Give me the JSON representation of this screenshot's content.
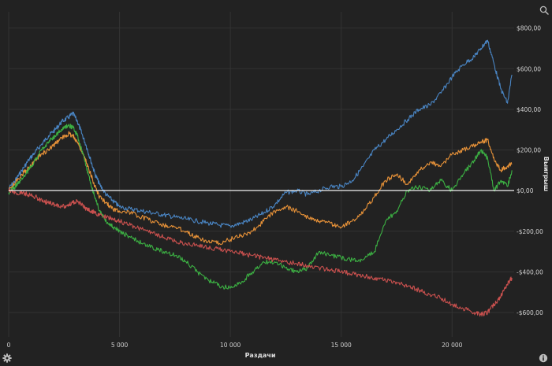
{
  "chart_data": {
    "type": "line",
    "title": "",
    "xlabel": "Раздачи",
    "ylabel": "Выигрыш",
    "xlim": [
      0,
      22800
    ],
    "ylim": [
      -720,
      880
    ],
    "x_ticks": [
      0,
      5000,
      10000,
      15000,
      20000
    ],
    "x_tick_labels": [
      "0",
      "5 000",
      "10 000",
      "15 000",
      "20 000"
    ],
    "y_ticks": [
      800,
      600,
      400,
      200,
      0,
      -200,
      -400,
      -600
    ],
    "y_tick_labels": [
      "$800,00",
      "$600,00",
      "$400,00",
      "$200,00",
      "$0,00",
      "-$200,00",
      "-$400,00",
      "-$600,00"
    ],
    "y_axis_position": "right",
    "grid": true,
    "zero_line": true,
    "legend": "none",
    "series": [
      {
        "color": "#4a86c5",
        "x": [
          0,
          300,
          600,
          900,
          1200,
          1500,
          1800,
          2100,
          2400,
          2700,
          2900,
          3100,
          3300,
          3500,
          3700,
          3900,
          4100,
          4400,
          4700,
          5000,
          5500,
          6000,
          6500,
          7000,
          7500,
          8000,
          8500,
          9000,
          9500,
          10000,
          10500,
          11000,
          11500,
          12000,
          12500,
          13000,
          13500,
          14000,
          14500,
          15000,
          15500,
          16000,
          16500,
          17000,
          17500,
          18000,
          18500,
          19000,
          19500,
          20000,
          20500,
          21000,
          21300,
          21600,
          21900,
          22200,
          22500,
          22700
        ],
        "y": [
          10,
          50,
          100,
          150,
          190,
          230,
          270,
          300,
          340,
          360,
          380,
          340,
          280,
          220,
          150,
          80,
          30,
          -20,
          -50,
          -80,
          -90,
          -100,
          -110,
          -120,
          -130,
          -140,
          -150,
          -160,
          -170,
          -175,
          -160,
          -140,
          -110,
          -70,
          -10,
          0,
          -20,
          0,
          20,
          20,
          50,
          120,
          200,
          250,
          300,
          350,
          400,
          420,
          480,
          560,
          620,
          660,
          700,
          740,
          620,
          500,
          430,
          570
        ]
      },
      {
        "color": "#e69138",
        "x": [
          0,
          300,
          600,
          900,
          1200,
          1500,
          1800,
          2100,
          2400,
          2700,
          2900,
          3100,
          3300,
          3500,
          3700,
          3900,
          4100,
          4400,
          4700,
          5000,
          5500,
          6000,
          6500,
          7000,
          7500,
          8000,
          8500,
          9000,
          9500,
          10000,
          10500,
          11000,
          11500,
          12000,
          12500,
          13000,
          13500,
          14000,
          14500,
          15000,
          15500,
          16000,
          16500,
          17000,
          17500,
          18000,
          18500,
          19000,
          19500,
          20000,
          20500,
          21000,
          21300,
          21600,
          21900,
          22200,
          22500,
          22700
        ],
        "y": [
          0,
          40,
          80,
          110,
          150,
          180,
          200,
          230,
          260,
          280,
          270,
          240,
          190,
          140,
          80,
          20,
          -30,
          -60,
          -90,
          -100,
          -110,
          -130,
          -150,
          -170,
          -180,
          -200,
          -230,
          -250,
          -260,
          -240,
          -220,
          -200,
          -150,
          -100,
          -80,
          -100,
          -130,
          -150,
          -160,
          -180,
          -150,
          -100,
          -30,
          50,
          80,
          30,
          100,
          140,
          120,
          180,
          200,
          220,
          240,
          250,
          150,
          100,
          120,
          130
        ]
      },
      {
        "color": "#3cb043",
        "x": [
          0,
          300,
          600,
          900,
          1200,
          1500,
          1800,
          2100,
          2400,
          2700,
          2900,
          3100,
          3300,
          3500,
          3700,
          3900,
          4100,
          4400,
          4700,
          5000,
          5500,
          6000,
          6500,
          7000,
          7500,
          8000,
          8500,
          9000,
          9500,
          10000,
          10500,
          11000,
          11500,
          12000,
          12500,
          13000,
          13500,
          14000,
          14500,
          15000,
          15500,
          16000,
          16500,
          17000,
          17500,
          18000,
          18500,
          19000,
          19500,
          20000,
          20500,
          21000,
          21300,
          21600,
          21900,
          22200,
          22500,
          22700
        ],
        "y": [
          -10,
          20,
          60,
          100,
          150,
          200,
          240,
          270,
          300,
          320,
          310,
          270,
          200,
          120,
          40,
          -40,
          -100,
          -150,
          -180,
          -200,
          -230,
          -260,
          -280,
          -300,
          -320,
          -350,
          -400,
          -440,
          -470,
          -480,
          -450,
          -400,
          -350,
          -350,
          -380,
          -400,
          -380,
          -300,
          -320,
          -330,
          -340,
          -340,
          -300,
          -150,
          -100,
          0,
          20,
          0,
          50,
          0,
          80,
          150,
          200,
          160,
          0,
          50,
          20,
          100
        ]
      },
      {
        "color": "#c9504e",
        "x": [
          0,
          300,
          600,
          900,
          1200,
          1500,
          1800,
          2100,
          2400,
          2700,
          2900,
          3100,
          3300,
          3500,
          3700,
          3900,
          4100,
          4400,
          4700,
          5000,
          5500,
          6000,
          6500,
          7000,
          7500,
          8000,
          8500,
          9000,
          9500,
          10000,
          10500,
          11000,
          11500,
          12000,
          12500,
          13000,
          13500,
          14000,
          14500,
          15000,
          15500,
          16000,
          16500,
          17000,
          17500,
          18000,
          18500,
          19000,
          19500,
          20000,
          20500,
          21000,
          21300,
          21600,
          21900,
          22200,
          22500,
          22700
        ],
        "y": [
          0,
          -10,
          -10,
          -20,
          -30,
          -50,
          -60,
          -70,
          -80,
          -70,
          -60,
          -50,
          -70,
          -90,
          -100,
          -110,
          -120,
          -130,
          -140,
          -150,
          -170,
          -190,
          -210,
          -230,
          -250,
          -260,
          -270,
          -280,
          -290,
          -300,
          -310,
          -320,
          -330,
          -340,
          -350,
          -360,
          -370,
          -380,
          -390,
          -400,
          -410,
          -420,
          -430,
          -440,
          -450,
          -470,
          -490,
          -510,
          -530,
          -560,
          -580,
          -600,
          -610,
          -600,
          -560,
          -520,
          -460,
          -430
        ]
      }
    ]
  },
  "icons": {
    "zoom": "zoom-icon",
    "settings": "gear-icon",
    "info": "info-icon"
  }
}
